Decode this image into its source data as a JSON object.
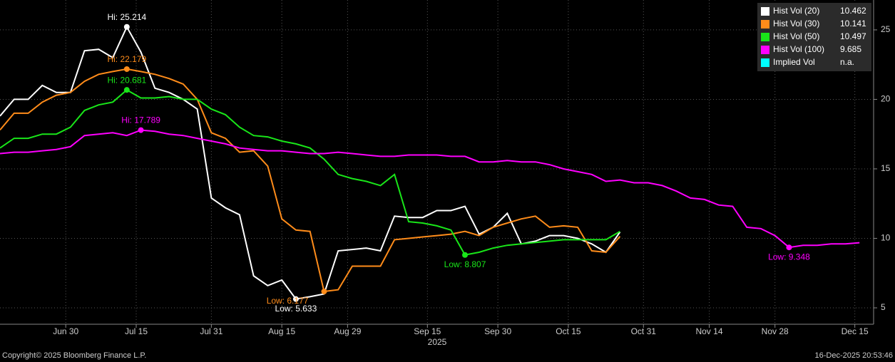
{
  "chart_data": {
    "type": "line",
    "x": [
      "2025-06-16",
      "2025-06-19",
      "2025-06-22",
      "2025-06-25",
      "2025-06-28",
      "2025-07-01",
      "2025-07-04",
      "2025-07-07",
      "2025-07-10",
      "2025-07-13",
      "2025-07-16",
      "2025-07-19",
      "2025-07-22",
      "2025-07-25",
      "2025-07-28",
      "2025-07-31",
      "2025-08-03",
      "2025-08-06",
      "2025-08-09",
      "2025-08-12",
      "2025-08-15",
      "2025-08-18",
      "2025-08-21",
      "2025-08-24",
      "2025-08-27",
      "2025-08-30",
      "2025-09-02",
      "2025-09-05",
      "2025-09-08",
      "2025-09-11",
      "2025-09-14",
      "2025-09-17",
      "2025-09-20",
      "2025-09-23",
      "2025-09-26",
      "2025-09-29",
      "2025-10-02",
      "2025-10-05",
      "2025-10-08",
      "2025-10-11",
      "2025-10-14",
      "2025-10-17",
      "2025-10-20",
      "2025-10-23",
      "2025-10-26",
      "2025-10-29",
      "2025-11-01",
      "2025-11-04",
      "2025-11-07",
      "2025-11-10",
      "2025-11-13",
      "2025-11-16",
      "2025-11-19",
      "2025-11-22",
      "2025-11-25",
      "2025-11-28",
      "2025-12-01",
      "2025-12-04",
      "2025-12-07",
      "2025-12-10",
      "2025-12-13",
      "2025-12-16"
    ],
    "xlim": [
      "2025-06-16",
      "2025-12-19"
    ],
    "xticks": [
      {
        "value": "2025-06-30",
        "label": "Jun 30"
      },
      {
        "value": "2025-07-15",
        "label": "Jul 15"
      },
      {
        "value": "2025-07-31",
        "label": "Jul 31"
      },
      {
        "value": "2025-08-15",
        "label": "Aug 15"
      },
      {
        "value": "2025-08-29",
        "label": "Aug 29"
      },
      {
        "value": "2025-09-15",
        "label": "Sep 15"
      },
      {
        "value": "2025-09-30",
        "label": "Sep 30"
      },
      {
        "value": "2025-10-15",
        "label": "Oct 15"
      },
      {
        "value": "2025-10-31",
        "label": "Oct 31"
      },
      {
        "value": "2025-11-14",
        "label": "Nov 14"
      },
      {
        "value": "2025-11-28",
        "label": "Nov 28"
      },
      {
        "value": "2025-12-15",
        "label": "Dec 15"
      }
    ],
    "xlabel": "2025",
    "ylim": [
      3.82,
      27.15
    ],
    "yticks": [
      5,
      10,
      15,
      20,
      25
    ],
    "grid": true,
    "legend": "upper right",
    "series": [
      {
        "name": "Hist Vol (20)",
        "color": "#ffffff",
        "hi_label": "Hi: 25.214",
        "low_label": "Low: 5.633",
        "values": [
          18.8,
          20.0,
          20.0,
          21.0,
          20.5,
          20.5,
          23.5,
          23.6,
          23.0,
          25.214,
          23.4,
          20.8,
          20.5,
          20.0,
          19.3,
          12.9,
          12.2,
          11.7,
          7.3,
          6.6,
          7.0,
          5.633,
          5.8,
          6.0,
          9.1,
          9.2,
          9.3,
          9.1,
          11.6,
          11.5,
          11.5,
          12.0,
          12.0,
          12.3,
          10.3,
          10.8,
          11.8,
          9.6,
          9.8,
          10.2,
          10.2,
          10.0,
          9.6,
          9.0,
          10.462,
          null,
          null,
          null,
          null,
          null,
          null,
          null,
          null,
          null,
          null,
          null,
          null,
          null,
          null,
          null,
          null,
          null
        ]
      },
      {
        "name": "Hist Vol (30)",
        "color": "#ff8c1a",
        "hi_label": "Hi: 22.179",
        "low_label": "Low: 6.177",
        "values": [
          17.8,
          19.0,
          19.0,
          19.8,
          20.3,
          20.5,
          21.3,
          21.8,
          22.0,
          22.179,
          22.0,
          21.8,
          21.5,
          21.1,
          20.0,
          17.6,
          17.2,
          16.2,
          16.3,
          15.2,
          11.4,
          10.6,
          10.5,
          6.177,
          6.3,
          8.0,
          8.0,
          8.0,
          9.9,
          10.0,
          10.1,
          10.2,
          10.3,
          10.5,
          10.2,
          10.8,
          11.1,
          11.4,
          11.6,
          10.8,
          10.9,
          10.8,
          9.1,
          9.0,
          10.141,
          null,
          null,
          null,
          null,
          null,
          null,
          null,
          null,
          null,
          null,
          null,
          null,
          null,
          null,
          null,
          null,
          null
        ]
      },
      {
        "name": "Hist Vol (50)",
        "color": "#19e619",
        "hi_label": "Hi: 20.681",
        "low_label": "Low: 8.807",
        "values": [
          16.5,
          17.2,
          17.2,
          17.5,
          17.5,
          18.0,
          19.2,
          19.6,
          19.8,
          20.681,
          20.1,
          20.1,
          20.2,
          20.0,
          20.0,
          19.3,
          18.9,
          18.0,
          17.4,
          17.3,
          17.0,
          16.8,
          16.5,
          15.7,
          14.6,
          14.3,
          14.1,
          13.8,
          14.6,
          11.2,
          11.1,
          10.9,
          10.6,
          8.807,
          9.0,
          9.3,
          9.5,
          9.6,
          9.7,
          9.8,
          9.9,
          9.9,
          9.9,
          9.9,
          10.497,
          null,
          null,
          null,
          null,
          null,
          null,
          null,
          null,
          null,
          null,
          null,
          null,
          null,
          null,
          null,
          null,
          null
        ]
      },
      {
        "name": "Hist Vol (100)",
        "color": "#ff00ff",
        "hi_label": "Hi: 17.789",
        "low_label": "Low: 9.348",
        "values": [
          16.1,
          16.2,
          16.2,
          16.3,
          16.4,
          16.6,
          17.4,
          17.5,
          17.6,
          17.4,
          17.789,
          17.7,
          17.5,
          17.4,
          17.2,
          17.0,
          16.8,
          16.5,
          16.4,
          16.3,
          16.3,
          16.2,
          16.1,
          16.1,
          16.2,
          16.1,
          16.0,
          15.9,
          15.9,
          16.0,
          16.0,
          16.0,
          15.9,
          15.9,
          15.5,
          15.5,
          15.6,
          15.5,
          15.5,
          15.3,
          15.0,
          14.8,
          14.6,
          14.1,
          14.2,
          14.0,
          14.0,
          13.8,
          13.4,
          12.9,
          12.8,
          12.4,
          12.3,
          10.8,
          10.7,
          10.2,
          9.348,
          9.5,
          9.5,
          9.6,
          9.6,
          9.685
        ]
      },
      {
        "name": "Implied Vol",
        "color": "#00ffff",
        "no_data_label": "n.a.",
        "values": [
          null,
          null,
          null,
          null,
          null,
          null,
          null,
          null,
          null,
          null,
          null,
          null,
          null,
          null,
          null,
          null,
          null,
          null,
          null,
          null,
          null,
          null,
          null,
          null,
          null,
          null,
          null,
          null,
          null,
          null,
          null,
          null,
          null,
          null,
          null,
          null,
          null,
          null,
          null,
          null,
          null,
          null,
          null,
          null,
          null,
          null,
          null,
          null,
          null,
          null,
          null,
          null,
          null,
          null,
          null,
          null,
          null,
          null,
          null,
          null,
          null,
          null
        ]
      }
    ]
  },
  "footer": {
    "left": "Copyright© 2025 Bloomberg Finance L.P.",
    "right": "16-Dec-2025 20:53:46"
  }
}
